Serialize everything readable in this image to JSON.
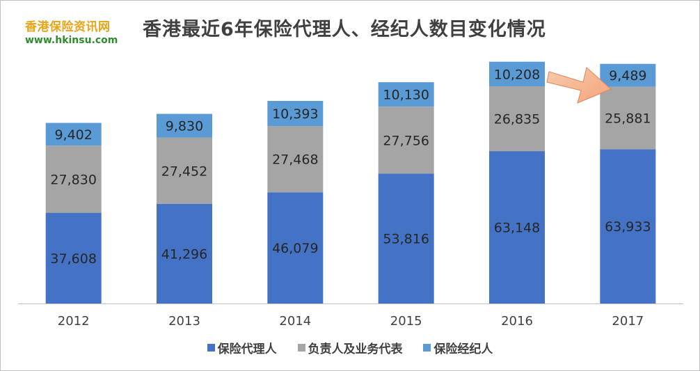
{
  "logo": {
    "name": "香港保险资讯网",
    "url": "www.hkinsu.com"
  },
  "colors": {
    "series": [
      "#4472c4",
      "#a5a5a5",
      "#5b9bd5"
    ],
    "axis": "#bfbfbf",
    "arrow": "#f4b183"
  },
  "chart_data": {
    "type": "bar",
    "stacked": true,
    "title": "香港最近6年保险代理人、经纪人数目变化情况",
    "categories": [
      "2012",
      "2013",
      "2014",
      "2015",
      "2016",
      "2017"
    ],
    "series": [
      {
        "name": "保险代理人",
        "values": [
          37608,
          41296,
          46079,
          53816,
          63148,
          63933
        ],
        "labels": [
          "37,608",
          "41,296",
          "46,079",
          "53,816",
          "63,148",
          "63,933"
        ]
      },
      {
        "name": "负责人及业务代表",
        "values": [
          27830,
          27452,
          27468,
          27756,
          26835,
          25881
        ],
        "labels": [
          "27,830",
          "27,452",
          "27,468",
          "27,756",
          "26,835",
          "25,881"
        ]
      },
      {
        "name": "保险经纪人",
        "values": [
          9402,
          9830,
          10393,
          10130,
          10208,
          9489
        ],
        "labels": [
          "9,402",
          "9,830",
          "10,393",
          "10,130",
          "10,208",
          "9,489"
        ]
      }
    ],
    "ylim": [
      0,
      105000
    ],
    "grid": false,
    "legend_position": "bottom",
    "annotation": "arrow pointing to 2017"
  }
}
